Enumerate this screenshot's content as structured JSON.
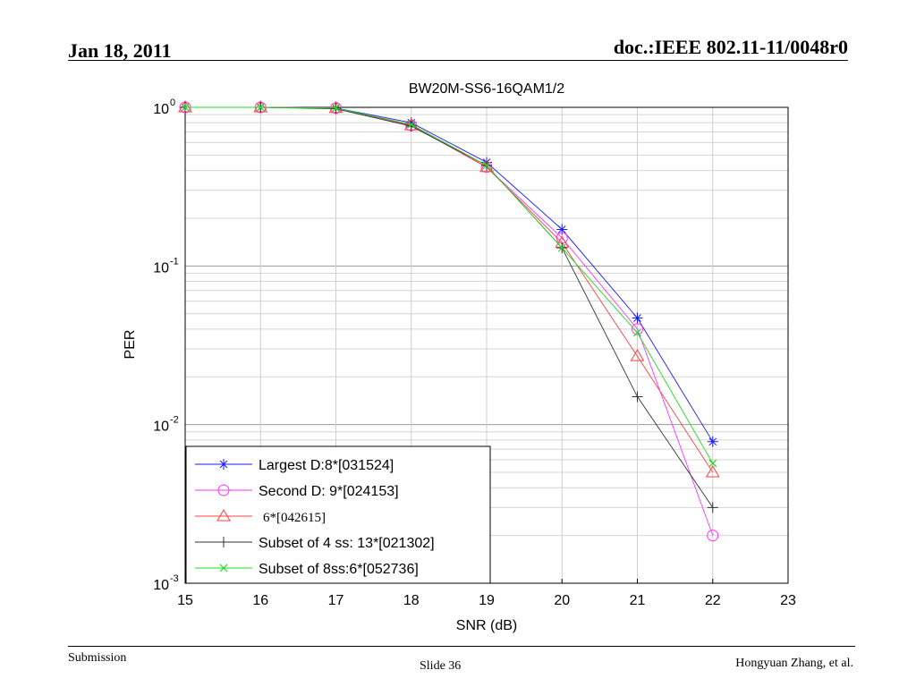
{
  "header": {
    "date": "Jan 18, 2011",
    "doc_id": "doc.:IEEE 802.11-11/0048r0"
  },
  "footer": {
    "left": "Submission",
    "center": "Slide 36",
    "right": "Hongyuan Zhang, et al."
  },
  "chart_data": {
    "type": "line",
    "title": "BW20M-SS6-16QAM1/2",
    "xlabel": "SNR (dB)",
    "ylabel": "PER",
    "xlim": [
      15,
      23
    ],
    "ylim": [
      0.001,
      1
    ],
    "yscale": "log",
    "grid": true,
    "legend_position": "bottom-left",
    "x_ticks": [
      "15",
      "16",
      "17",
      "18",
      "19",
      "20",
      "21",
      "22",
      "23"
    ],
    "y_ticks": [
      {
        "base": "10",
        "exp": "0"
      },
      {
        "base": "10",
        "exp": "-1"
      },
      {
        "base": "10",
        "exp": "-2"
      },
      {
        "base": "10",
        "exp": "-3"
      }
    ],
    "series": [
      {
        "name": "Largest D:8*[031524]",
        "color": "#1a1aff",
        "marker": "star",
        "x": [
          15,
          16,
          17,
          18,
          19,
          20,
          21,
          22
        ],
        "y": [
          1.0,
          1.0,
          0.99,
          0.8,
          0.45,
          0.17,
          0.047,
          0.0078
        ]
      },
      {
        "name": "Second D: 9*[024153]",
        "color": "#ff33ff",
        "marker": "circle",
        "x": [
          15,
          16,
          17,
          18,
          19,
          20,
          21,
          22
        ],
        "y": [
          1.0,
          1.0,
          0.99,
          0.77,
          0.42,
          0.15,
          0.04,
          0.002
        ]
      },
      {
        "name": "6*[042615]",
        "color": "#ff4040",
        "marker": "triangle",
        "x": [
          15,
          16,
          17,
          18,
          19,
          20,
          21,
          22
        ],
        "y": [
          1.0,
          1.0,
          0.99,
          0.77,
          0.42,
          0.14,
          0.027,
          0.005
        ]
      },
      {
        "name": "Subset of 4 ss: 13*[021302]",
        "color": "#333333",
        "marker": "plus",
        "x": [
          15,
          16,
          17,
          18,
          19,
          20,
          21,
          22
        ],
        "y": [
          1.0,
          1.0,
          0.98,
          0.76,
          0.43,
          0.13,
          0.015,
          0.003
        ]
      },
      {
        "name": "Subset of 8ss:6*[052736]",
        "color": "#22dd22",
        "marker": "x",
        "x": [
          15,
          16,
          17,
          18,
          19,
          20,
          21,
          22
        ],
        "y": [
          1.0,
          1.0,
          0.99,
          0.78,
          0.43,
          0.13,
          0.038,
          0.0057
        ]
      }
    ]
  }
}
